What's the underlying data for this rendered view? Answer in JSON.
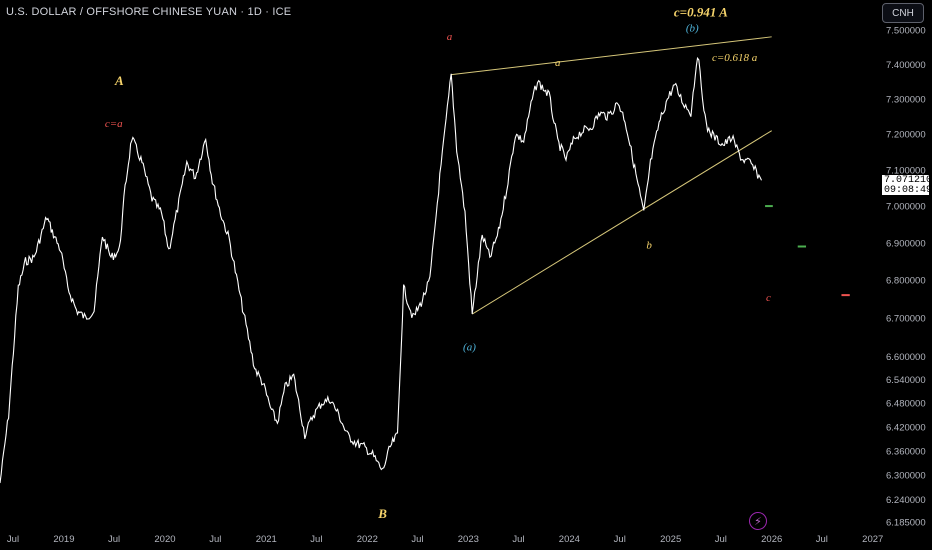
{
  "header": {
    "title": "U.S. DOLLAR / OFFSHORE CHINESE YUAN · 1D · ICE",
    "currency_button": "CNH"
  },
  "price_badge": {
    "price": "7.071210",
    "countdown": "09:08:49"
  },
  "colors": {
    "background": "#000000",
    "price_line": "#ffffff",
    "trendline": "#d6c77a",
    "label_yellow": "#f5d36b",
    "label_red": "#ef5350",
    "label_blue": "#4fb3d9",
    "target_green": "#4caf50",
    "axis_text": "#b2b5be"
  },
  "icons": [
    "lightning-icon"
  ],
  "chart_data": {
    "type": "line",
    "title": "U.S. DOLLAR / OFFSHORE CHINESE YUAN · 1D · ICE",
    "xlabel": "",
    "ylabel": "",
    "y_scale": "log",
    "ylim": [
      6.17,
      7.62
    ],
    "x_range": [
      "2018-05-15",
      "2027-01-20"
    ],
    "x_ticks": [
      "Jul",
      "2019",
      "Jul",
      "2020",
      "Jul",
      "2021",
      "Jul",
      "2022",
      "Jul",
      "2023",
      "Jul",
      "2024",
      "Jul",
      "2025",
      "Jul",
      "2026",
      "Jul",
      "2027"
    ],
    "y_ticks": [
      "7.500000",
      "7.400000",
      "7.300000",
      "7.200000",
      "7.100000",
      "7.000000",
      "6.900000",
      "6.800000",
      "6.700000",
      "6.600000",
      "6.540000",
      "6.480000",
      "6.420000",
      "6.360000",
      "6.300000",
      "6.240000",
      "6.185000"
    ],
    "grid": false,
    "series": [
      {
        "points": [
          [
            "2018-05-15",
            6.28
          ],
          [
            "2018-06-15",
            6.45
          ],
          [
            "2018-07-20",
            6.78
          ],
          [
            "2018-08-15",
            6.85
          ],
          [
            "2018-09-15",
            6.86
          ],
          [
            "2018-10-31",
            6.97
          ],
          [
            "2018-11-20",
            6.93
          ],
          [
            "2018-12-20",
            6.88
          ],
          [
            "2019-01-15",
            6.78
          ],
          [
            "2019-02-15",
            6.72
          ],
          [
            "2019-03-20",
            6.7
          ],
          [
            "2019-04-20",
            6.72
          ],
          [
            "2019-05-20",
            6.92
          ],
          [
            "2019-06-20",
            6.86
          ],
          [
            "2019-07-20",
            6.88
          ],
          [
            "2019-08-10",
            7.05
          ],
          [
            "2019-09-03",
            7.19
          ],
          [
            "2019-10-10",
            7.12
          ],
          [
            "2019-11-15",
            7.02
          ],
          [
            "2019-12-20",
            6.98
          ],
          [
            "2020-01-15",
            6.88
          ],
          [
            "2020-02-20",
            7.01
          ],
          [
            "2020-03-20",
            7.12
          ],
          [
            "2020-04-20",
            7.08
          ],
          [
            "2020-05-27",
            7.19
          ],
          [
            "2020-06-20",
            7.07
          ],
          [
            "2020-07-20",
            6.98
          ],
          [
            "2020-08-20",
            6.91
          ],
          [
            "2020-09-20",
            6.79
          ],
          [
            "2020-10-20",
            6.68
          ],
          [
            "2020-11-20",
            6.57
          ],
          [
            "2020-12-20",
            6.53
          ],
          [
            "2021-01-20",
            6.46
          ],
          [
            "2021-02-10",
            6.43
          ],
          [
            "2021-03-10",
            6.52
          ],
          [
            "2021-04-10",
            6.55
          ],
          [
            "2021-05-20",
            6.4
          ],
          [
            "2021-06-20",
            6.45
          ],
          [
            "2021-07-20",
            6.48
          ],
          [
            "2021-08-20",
            6.49
          ],
          [
            "2021-09-20",
            6.45
          ],
          [
            "2021-10-20",
            6.4
          ],
          [
            "2021-11-20",
            6.38
          ],
          [
            "2021-12-20",
            6.37
          ],
          [
            "2022-01-20",
            6.35
          ],
          [
            "2022-02-25",
            6.31
          ],
          [
            "2022-03-25",
            6.37
          ],
          [
            "2022-04-20",
            6.4
          ],
          [
            "2022-05-12",
            6.78
          ],
          [
            "2022-06-15",
            6.7
          ],
          [
            "2022-07-15",
            6.74
          ],
          [
            "2022-08-15",
            6.8
          ],
          [
            "2022-09-20",
            7.08
          ],
          [
            "2022-10-31",
            7.37
          ],
          [
            "2022-11-20",
            7.16
          ],
          [
            "2022-12-20",
            6.98
          ],
          [
            "2023-01-15",
            6.71
          ],
          [
            "2023-02-20",
            6.92
          ],
          [
            "2023-03-20",
            6.86
          ],
          [
            "2023-04-20",
            6.93
          ],
          [
            "2023-05-20",
            7.05
          ],
          [
            "2023-06-20",
            7.2
          ],
          [
            "2023-07-20",
            7.18
          ],
          [
            "2023-08-20",
            7.3
          ],
          [
            "2023-09-08",
            7.35
          ],
          [
            "2023-10-20",
            7.31
          ],
          [
            "2023-11-20",
            7.18
          ],
          [
            "2023-12-20",
            7.13
          ],
          [
            "2024-01-20",
            7.19
          ],
          [
            "2024-02-20",
            7.21
          ],
          [
            "2024-03-20",
            7.22
          ],
          [
            "2024-04-20",
            7.26
          ],
          [
            "2024-05-20",
            7.25
          ],
          [
            "2024-06-25",
            7.29
          ],
          [
            "2024-07-20",
            7.24
          ],
          [
            "2024-08-20",
            7.12
          ],
          [
            "2024-09-26",
            6.98
          ],
          [
            "2024-10-20",
            7.12
          ],
          [
            "2024-11-20",
            7.23
          ],
          [
            "2024-12-20",
            7.3
          ],
          [
            "2025-01-15",
            7.34
          ],
          [
            "2025-02-15",
            7.29
          ],
          [
            "2025-03-15",
            7.26
          ],
          [
            "2025-04-08",
            7.43
          ],
          [
            "2025-05-10",
            7.22
          ],
          [
            "2025-06-10",
            7.19
          ],
          [
            "2025-07-10",
            7.17
          ],
          [
            "2025-08-10",
            7.19
          ],
          [
            "2025-09-15",
            7.13
          ],
          [
            "2025-10-15",
            7.12
          ],
          [
            "2025-11-25",
            7.071
          ]
        ]
      }
    ],
    "trendlines": [
      {
        "from": [
          "2022-11-01",
          7.37
        ],
        "to": [
          "2026-01-01",
          7.48
        ]
      },
      {
        "from": [
          "2023-01-15",
          6.71
        ],
        "to": [
          "2026-01-01",
          7.21
        ]
      }
    ],
    "target_levels": [
      {
        "label": "green",
        "value": 7.0,
        "from": "2025-12-08",
        "to": "2026-01-05"
      },
      {
        "label": "green",
        "value": 6.89,
        "from": "2026-04-05",
        "to": "2026-05-05"
      },
      {
        "label": "red",
        "value": 6.76,
        "from": "2026-09-10",
        "to": "2026-10-10"
      }
    ],
    "annotations": [
      {
        "text": "c=0.941 A",
        "x": "2025-04-20",
        "y": 7.54,
        "color": "yellow",
        "style": "bold-italic"
      },
      {
        "text": "(b)",
        "x": "2025-03-20",
        "y": 7.495,
        "color": "blue"
      },
      {
        "text": "a",
        "x": "2022-10-25",
        "y": 7.47,
        "color": "red"
      },
      {
        "text": "a",
        "x": "2023-11-20",
        "y": 7.395,
        "color": "yellow"
      },
      {
        "text": "c=0.618 a",
        "x": "2025-08-20",
        "y": 7.41,
        "color": "yellow"
      },
      {
        "text": "A",
        "x": "2019-07-20",
        "y": 7.34,
        "color": "yellow",
        "style": "bold-italic"
      },
      {
        "text": "c=a",
        "x": "2019-06-30",
        "y": 7.22,
        "color": "red"
      },
      {
        "text": "b",
        "x": "2024-10-15",
        "y": 6.885,
        "color": "yellow"
      },
      {
        "text": "(a)",
        "x": "2023-01-05",
        "y": 6.615,
        "color": "blue"
      },
      {
        "text": "c",
        "x": "2025-12-20",
        "y": 6.745,
        "color": "red"
      },
      {
        "text": "B",
        "x": "2022-02-25",
        "y": 6.195,
        "color": "yellow",
        "style": "bold-italic"
      }
    ]
  }
}
